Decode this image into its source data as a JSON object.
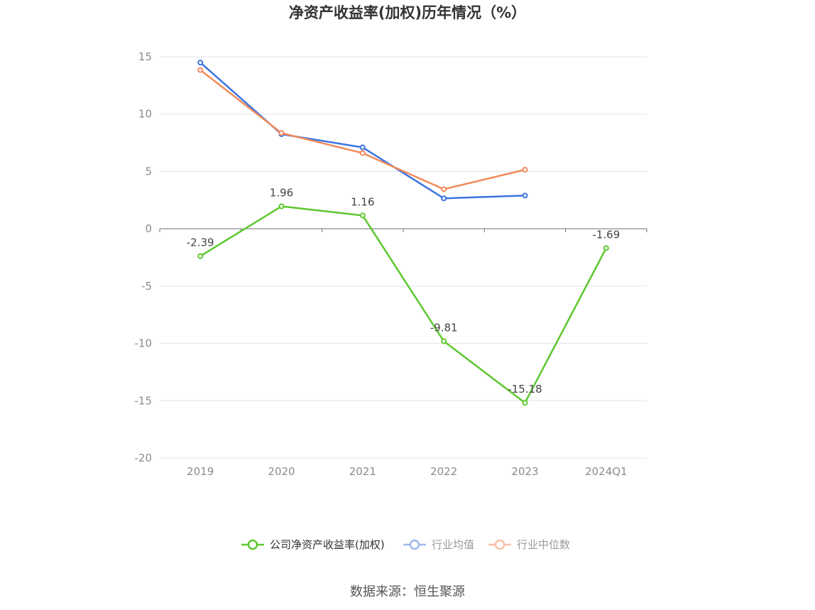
{
  "chart_data": {
    "type": "line",
    "title": "净资产收益率(加权)历年情况（%）",
    "categories": [
      "2019",
      "2020",
      "2021",
      "2022",
      "2023",
      "2024Q1"
    ],
    "ylim": [
      -20,
      15
    ],
    "yticks": [
      "15",
      "10",
      "5",
      "0",
      "-5",
      "-10",
      "-15",
      "-20"
    ],
    "ytick_values": [
      15,
      10,
      5,
      0,
      -5,
      -10,
      -15,
      -20
    ],
    "grid": true,
    "legend_position": "bottom",
    "series": [
      {
        "name": "公司净资产收益率(加权)",
        "color": "#5cc72e",
        "values": [
          -2.39,
          1.96,
          1.16,
          -9.81,
          -15.18,
          -1.69
        ],
        "labels": [
          "-2.39",
          "1.96",
          "1.16",
          "-9.81",
          "-15.18",
          "-1.69"
        ],
        "show_labels": true
      },
      {
        "name": "行业均值",
        "color": "#3b74e0",
        "legend_color": "#9db8ee",
        "values": [
          14.5,
          8.25,
          7.1,
          2.65,
          2.9,
          null
        ],
        "show_labels": false
      },
      {
        "name": "行业中位数",
        "color": "#f28a5a",
        "legend_color": "#f7c1a8",
        "values": [
          13.85,
          8.35,
          6.6,
          3.45,
          5.15,
          null
        ],
        "show_labels": false
      }
    ]
  },
  "source": "数据来源：恒生聚源"
}
